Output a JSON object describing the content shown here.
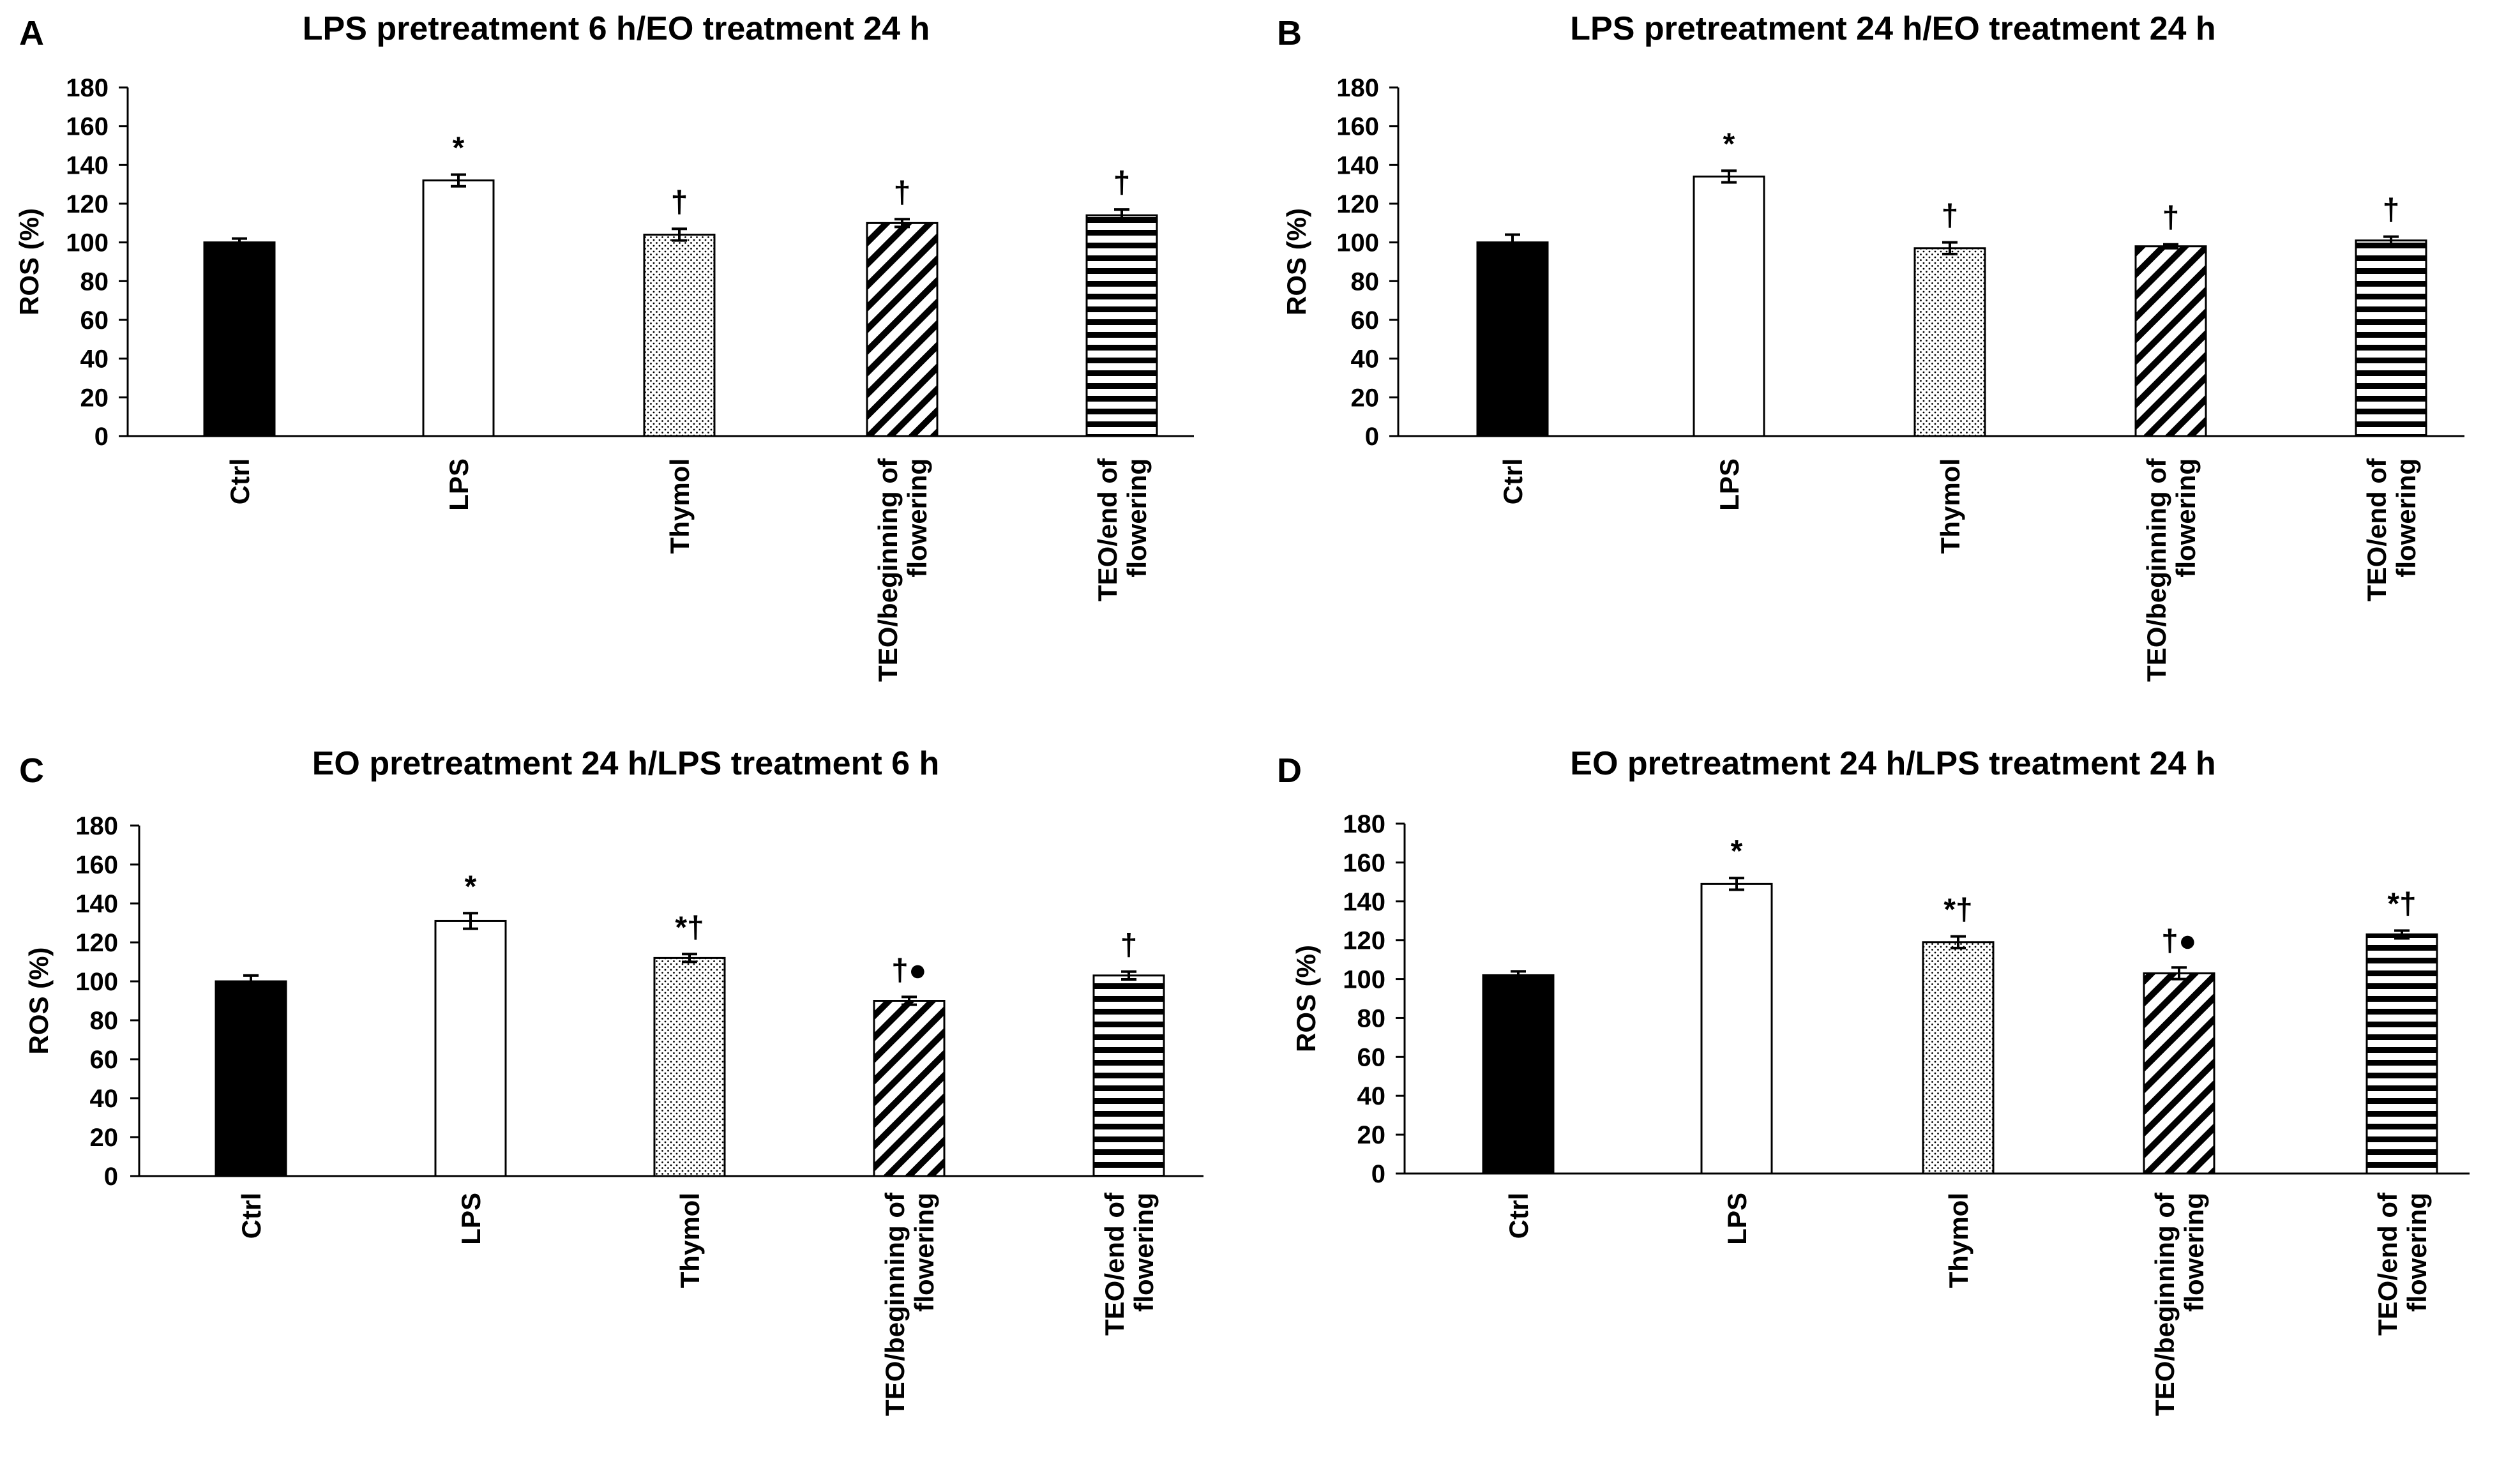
{
  "colors": {
    "ctrl": "#000000",
    "lps": "#ffffff",
    "axis": "#000000",
    "background": "#ffffff"
  },
  "chart_data": [
    {
      "type": "bar",
      "panel": "A",
      "title": "LPS pretreatment 6 h/EO treatment 24 h",
      "ylabel": "ROS (%)",
      "xlabel": "",
      "ylim": [
        0,
        180
      ],
      "yticks": [
        0,
        20,
        40,
        60,
        80,
        100,
        120,
        140,
        160,
        180
      ],
      "categories": [
        "Ctrl",
        "LPS",
        "Thymol",
        "TEO/beginning of flowering",
        "TEO/end of flowering"
      ],
      "category_lines": [
        [
          "Ctrl"
        ],
        [
          "LPS"
        ],
        [
          "Thymol"
        ],
        [
          "TEO/beginning of",
          "flowering"
        ],
        [
          "TEO/end of",
          "flowering"
        ]
      ],
      "values": [
        100,
        132,
        104,
        110,
        114
      ],
      "errors": [
        2,
        3,
        3,
        2,
        3
      ],
      "annotations": [
        "",
        "*",
        "†",
        "†",
        "†"
      ],
      "patterns": [
        "solid-black",
        "white",
        "dots",
        "diagonal",
        "horizontal"
      ]
    },
    {
      "type": "bar",
      "panel": "B",
      "title": "LPS pretreatment 24 h/EO treatment 24 h",
      "ylabel": "ROS (%)",
      "xlabel": "",
      "ylim": [
        0,
        180
      ],
      "yticks": [
        0,
        20,
        40,
        60,
        80,
        100,
        120,
        140,
        160,
        180
      ],
      "categories": [
        "Ctrl",
        "LPS",
        "Thymol",
        "TEO/beginning of flowering",
        "TEO/end of flowering"
      ],
      "category_lines": [
        [
          "Ctrl"
        ],
        [
          "LPS"
        ],
        [
          "Thymol"
        ],
        [
          "TEO/beginning of",
          "flowering"
        ],
        [
          "TEO/end of",
          "flowering"
        ]
      ],
      "values": [
        100,
        134,
        97,
        98,
        101
      ],
      "errors": [
        4,
        3,
        3,
        1,
        2
      ],
      "annotations": [
        "",
        "*",
        "†",
        "†",
        "†"
      ],
      "patterns": [
        "solid-black",
        "white",
        "dots",
        "diagonal",
        "horizontal"
      ]
    },
    {
      "type": "bar",
      "panel": "C",
      "title": "EO pretreatment 24 h/LPS treatment 6 h",
      "ylabel": "ROS (%)",
      "xlabel": "",
      "ylim": [
        0,
        180
      ],
      "yticks": [
        0,
        20,
        40,
        60,
        80,
        100,
        120,
        140,
        160,
        180
      ],
      "categories": [
        "Ctrl",
        "LPS",
        "Thymol",
        "TEO/beginning of flowering",
        "TEO/end of flowering"
      ],
      "category_lines": [
        [
          "Ctrl"
        ],
        [
          "LPS"
        ],
        [
          "Thymol"
        ],
        [
          "TEO/beginning of",
          "flowering"
        ],
        [
          "TEO/end of",
          "flowering"
        ]
      ],
      "values": [
        100,
        131,
        112,
        90,
        103
      ],
      "errors": [
        3,
        4,
        2,
        2,
        2
      ],
      "annotations": [
        "",
        "*",
        "*†",
        "†●",
        "†"
      ],
      "patterns": [
        "solid-black",
        "white",
        "dots",
        "diagonal",
        "horizontal"
      ]
    },
    {
      "type": "bar",
      "panel": "D",
      "title": "EO pretreatment 24 h/LPS treatment 24 h",
      "ylabel": "ROS (%)",
      "xlabel": "",
      "ylim": [
        0,
        180
      ],
      "yticks": [
        0,
        20,
        40,
        60,
        80,
        100,
        120,
        140,
        160,
        180
      ],
      "categories": [
        "Ctrl",
        "LPS",
        "Thymol",
        "TEO/beginning of flowering",
        "TEO/end of flowering"
      ],
      "category_lines": [
        [
          "Ctrl"
        ],
        [
          "LPS"
        ],
        [
          "Thymol"
        ],
        [
          "TEO/beginning of",
          "flowering"
        ],
        [
          "TEO/end of",
          "flowering"
        ]
      ],
      "values": [
        102,
        149,
        119,
        103,
        123
      ],
      "errors": [
        2,
        3,
        3,
        3,
        2
      ],
      "annotations": [
        "",
        "*",
        "*†",
        "†●",
        "*†"
      ],
      "patterns": [
        "solid-black",
        "white",
        "dots",
        "diagonal",
        "horizontal"
      ]
    }
  ]
}
